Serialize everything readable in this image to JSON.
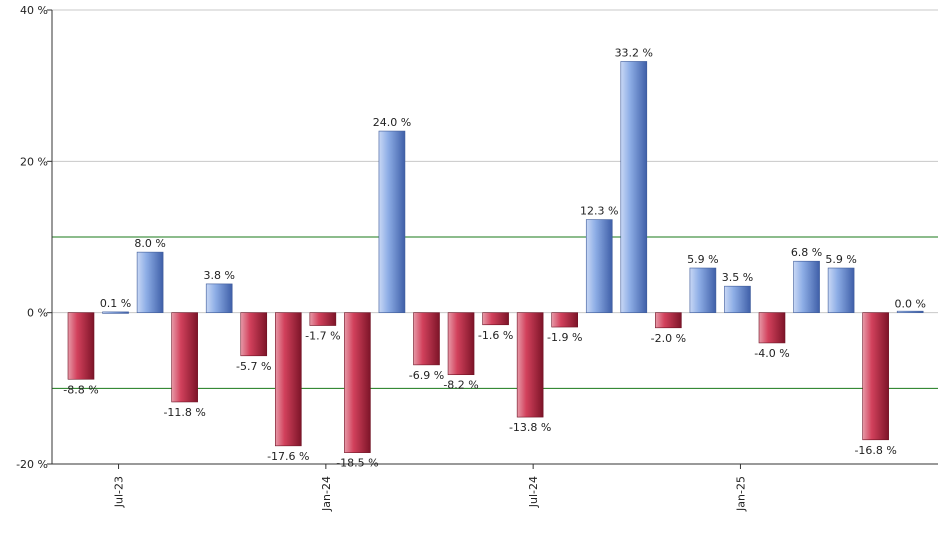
{
  "chart_data": {
    "type": "bar",
    "title": "",
    "xlabel": "",
    "ylabel": "",
    "ylim": [
      -20,
      40
    ],
    "y_ticks": [
      {
        "value": -20,
        "label": "-20 %"
      },
      {
        "value": 0,
        "label": "0 %"
      },
      {
        "value": 20,
        "label": "20 %"
      },
      {
        "value": 40,
        "label": "40 %"
      }
    ],
    "reference_lines": [
      10,
      -10
    ],
    "grid": "horizontal",
    "x_tick_labels": [
      {
        "index": 1,
        "label": "Jul-23"
      },
      {
        "index": 7,
        "label": "Jan-24"
      },
      {
        "index": 13,
        "label": "Jul-24"
      },
      {
        "index": 19,
        "label": "Jan-25"
      }
    ],
    "values": [
      -8.8,
      0.1,
      8.0,
      -11.8,
      3.8,
      -5.7,
      -17.6,
      -1.7,
      -18.5,
      24.0,
      -6.9,
      -8.2,
      -1.6,
      -13.8,
      -1.9,
      12.3,
      33.2,
      -2.0,
      5.9,
      3.5,
      -4.0,
      6.8,
      5.9,
      -16.8,
      0.0
    ],
    "labels": [
      "-8.8 %",
      "0.1 %",
      "8.0 %",
      "-11.8 %",
      "3.8 %",
      "-5.7 %",
      "-17.6 %",
      "-1.7 %",
      "-18.5 %",
      "24.0 %",
      "-6.9 %",
      "-8.2 %",
      "-1.6 %",
      "-13.8 %",
      "-1.9 %",
      "12.3 %",
      "33.2 %",
      "-2.0 %",
      "5.9 %",
      "3.5 %",
      "-4.0 %",
      "6.8 %",
      "5.9 %",
      "-16.8 %",
      "0.0 %"
    ],
    "colors": {
      "positive": "#6d8fd6",
      "negative": "#c8304e",
      "reference_line": "#1a7a1a",
      "grid": "#c8c8c8"
    }
  }
}
